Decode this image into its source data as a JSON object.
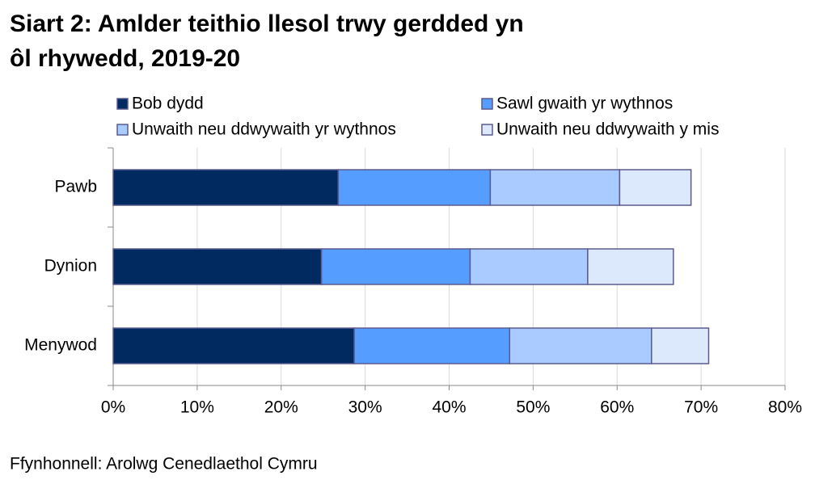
{
  "chart_data": {
    "type": "stacked-barh",
    "title": "Siart 2: Amlder teithio llesol trwy gerdded yn ôl rhywedd, 2019-20",
    "source": "Ffynhonnell: Arolwg Cenedlaethol Cymru",
    "categories": [
      "Pawb",
      "Dynion",
      "Menywod"
    ],
    "series": [
      {
        "name": "Bob dydd",
        "color": "#002a60",
        "values": [
          26.8,
          24.8,
          28.7
        ]
      },
      {
        "name": "Sawl gwaith yr wythnos",
        "color": "#559dff",
        "values": [
          18.1,
          17.7,
          18.5
        ]
      },
      {
        "name": "Unwaith neu ddwywaith yr wythnos",
        "color": "#a9cbff",
        "values": [
          15.4,
          14.0,
          16.9
        ]
      },
      {
        "name": "Unwaith neu ddwywaith y mis",
        "color": "#dce9fd",
        "values": [
          8.5,
          10.2,
          6.8
        ]
      }
    ],
    "xlim": [
      0,
      80
    ],
    "xticks": [
      {
        "value": 0,
        "label": "0%"
      },
      {
        "value": 10,
        "label": "10%"
      },
      {
        "value": 20,
        "label": "20%"
      },
      {
        "value": 30,
        "label": "30%"
      },
      {
        "value": 40,
        "label": "40%"
      },
      {
        "value": 50,
        "label": "50%"
      },
      {
        "value": 60,
        "label": "60%"
      },
      {
        "value": 70,
        "label": "70%"
      },
      {
        "value": 80,
        "label": "80%"
      }
    ],
    "grid": true,
    "legend": "top"
  }
}
